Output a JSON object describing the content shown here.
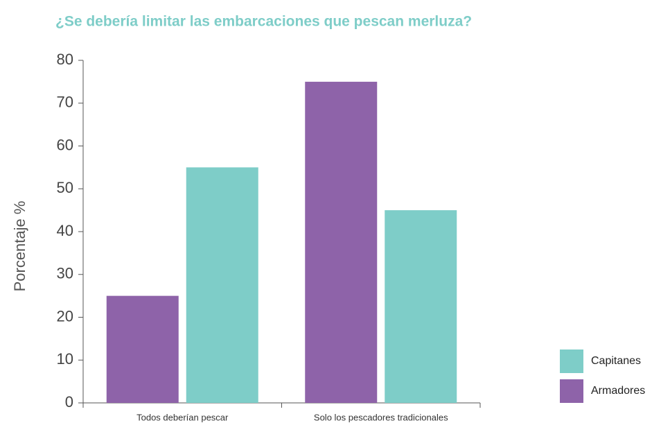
{
  "chart_data": {
    "type": "bar",
    "title": "¿Se debería limitar las embarcaciones que pescan merluza?",
    "y_label": "Porcentaje %",
    "categories": [
      "Todos deberían pescar",
      "Solo los pescadores tradicionales"
    ],
    "series": [
      {
        "name": "Armadores",
        "color": "#8e63a9",
        "values": [
          25,
          75
        ]
      },
      {
        "name": "Capitanes",
        "color": "#7ecdc8",
        "values": [
          55,
          45
        ]
      }
    ],
    "ylim": [
      0,
      80
    ],
    "yticks": [
      0,
      10,
      20,
      30,
      40,
      50,
      60,
      70,
      80
    ],
    "legend": "lower right"
  }
}
